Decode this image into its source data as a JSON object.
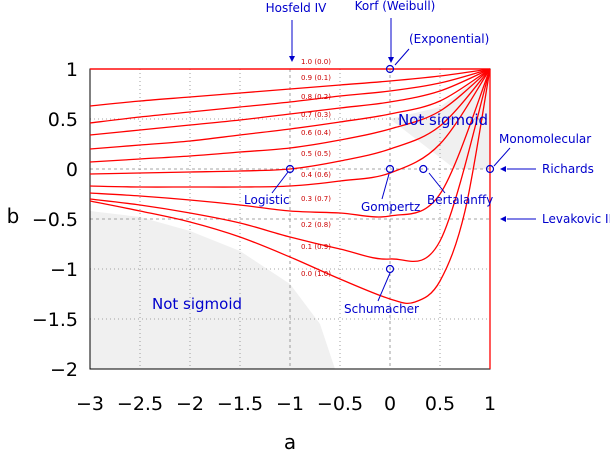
{
  "chart_data": {
    "type": "line",
    "xlabel": "a",
    "ylabel": "b",
    "xlim": [
      -3,
      1
    ],
    "ylim": [
      -2,
      1
    ],
    "grid": true,
    "x_ticks": [
      -3,
      -2.5,
      -2,
      -1.5,
      -1,
      -0.5,
      0,
      0.5,
      1
    ],
    "x_tick_labels": [
      "−3",
      "−2.5",
      "−2",
      "−1.5",
      "−1",
      "−0.5",
      "0",
      "0.5",
      "1"
    ],
    "y_ticks": [
      1,
      0.5,
      0,
      -0.5,
      -1,
      -1.5,
      -2
    ],
    "y_tick_labels": [
      "1",
      "0.5",
      "0",
      "−0.5",
      "−1",
      "−1.5",
      "−2"
    ],
    "series": [
      {
        "name": "1.0 (0.0)",
        "x": [
          -3,
          1
        ],
        "y": [
          1,
          1
        ]
      },
      {
        "name": "0.9 (0.1)",
        "x": [
          -3,
          -2.5,
          -2,
          -1.5,
          -1,
          -0.5,
          0,
          0.5,
          1
        ],
        "y": [
          0.63,
          0.68,
          0.72,
          0.76,
          0.8,
          0.84,
          0.88,
          0.93,
          1
        ]
      },
      {
        "name": "0.8 (0.2)",
        "x": [
          -3,
          -2.5,
          -2,
          -1.5,
          -1,
          -0.5,
          0,
          0.5,
          1
        ],
        "y": [
          0.46,
          0.52,
          0.57,
          0.62,
          0.67,
          0.73,
          0.78,
          0.86,
          1
        ]
      },
      {
        "name": "0.7 (0.3)",
        "x": [
          -3,
          -2.5,
          -2,
          -1.5,
          -1,
          -0.5,
          0,
          0.5,
          1
        ],
        "y": [
          0.34,
          0.39,
          0.44,
          0.49,
          0.55,
          0.61,
          0.67,
          0.78,
          1
        ]
      },
      {
        "name": "0.6 (0.4)",
        "x": [
          -3,
          -2.5,
          -2,
          -1.5,
          -1,
          -0.5,
          0,
          0.5,
          1
        ],
        "y": [
          0.2,
          0.24,
          0.28,
          0.34,
          0.4,
          0.47,
          0.55,
          0.68,
          1
        ]
      },
      {
        "name": "0.5 (0.5)",
        "x": [
          -3,
          -2.5,
          -2,
          -1.5,
          -1,
          -0.5,
          0,
          0.5,
          1
        ],
        "y": [
          0.07,
          0.1,
          0.13,
          0.17,
          0.21,
          0.29,
          0.4,
          0.58,
          1
        ]
      },
      {
        "name": "0.4 (0.6)",
        "x": [
          -3,
          -2.5,
          -2,
          -1.5,
          -1,
          -0.5,
          0,
          0.5,
          1
        ],
        "y": [
          -0.05,
          -0.04,
          -0.03,
          -0.02,
          0,
          0.08,
          0.2,
          0.43,
          1
        ]
      },
      {
        "name": "0.3 (0.7)",
        "x": [
          -3,
          -2.5,
          -2,
          -1.5,
          -1,
          -0.5,
          0,
          0.5,
          1
        ],
        "y": [
          -0.17,
          -0.18,
          -0.18,
          -0.18,
          -0.17,
          -0.12,
          -0.04,
          0.25,
          1
        ]
      },
      {
        "name": "0.2 (0.8)",
        "x": [
          -3,
          -2.5,
          -2,
          -1.5,
          -1,
          -0.5,
          0,
          0.5,
          1
        ],
        "y": [
          -0.24,
          -0.27,
          -0.31,
          -0.36,
          -0.42,
          -0.44,
          -0.47,
          -0.25,
          1
        ]
      },
      {
        "name": "0.1 (0.9)",
        "x": [
          -3,
          -2.5,
          -2,
          -1.5,
          -1,
          -0.5,
          0,
          0.5,
          1
        ],
        "y": [
          -0.3,
          -0.36,
          -0.44,
          -0.54,
          -0.68,
          -0.8,
          -0.9,
          -0.72,
          1
        ]
      },
      {
        "name": "0.0 (1.0)",
        "x": [
          -3,
          -2.5,
          -2,
          -1.5,
          -1,
          -0.5,
          0,
          0.25,
          0.5,
          0.75,
          1
        ],
        "y": [
          -0.32,
          -0.42,
          -0.53,
          -0.68,
          -0.88,
          -1.1,
          -1.3,
          -1.33,
          -1.12,
          -0.42,
          1
        ]
      }
    ],
    "not_sigmoid_regions": [
      {
        "label": "Not sigmoid",
        "x": [
          -3,
          -3,
          -2.5,
          -2,
          -1.5,
          -1,
          -0.5,
          -0.5,
          -3
        ],
        "y": [
          -0.42,
          -2,
          -2,
          -2,
          -2,
          -2,
          -2,
          -2,
          -0.42
        ],
        "upper_x": [
          -3,
          -2.5,
          -2,
          -1.5,
          -1,
          -0.7,
          -0.55
        ],
        "upper_y": [
          -0.42,
          -0.48,
          -0.62,
          -0.82,
          -1.15,
          -1.55,
          -2
        ]
      },
      {
        "label": "Not sigmoid",
        "x": [
          0,
          0.5,
          1,
          1,
          0.65,
          0
        ],
        "y": [
          0.5,
          0.62,
          1,
          0,
          0,
          0.5
        ]
      }
    ],
    "annotations": [
      {
        "text": "Hosfeld IV",
        "x": -1,
        "y": 1,
        "marker": "arrow"
      },
      {
        "text": "Korf (Weibull)",
        "x": 0,
        "y": 1,
        "marker": "circle"
      },
      {
        "text": "(Exponential)",
        "x": 0,
        "y": 1,
        "marker": "circle"
      },
      {
        "text": "Monomolecular",
        "x": 1,
        "y": 0,
        "marker": "circle"
      },
      {
        "text": "Richards",
        "x": 1,
        "y": 0,
        "marker": "arrow"
      },
      {
        "text": "Levakovic III",
        "x": 1,
        "y": -0.5,
        "marker": "arrow"
      },
      {
        "text": "Logistic",
        "x": -1,
        "y": 0,
        "marker": "circle"
      },
      {
        "text": "Gompertz",
        "x": 0,
        "y": 0,
        "marker": "circle"
      },
      {
        "text": "Bertalanffy",
        "x": 0.333,
        "y": 0,
        "marker": "circle"
      },
      {
        "text": "Schumacher",
        "x": 0,
        "y": -1,
        "marker": "circle"
      }
    ],
    "colors": {
      "curves": "#ff0000",
      "markers": "#0000cc",
      "shade": "#f0f0f0",
      "grid": "#888888"
    }
  }
}
